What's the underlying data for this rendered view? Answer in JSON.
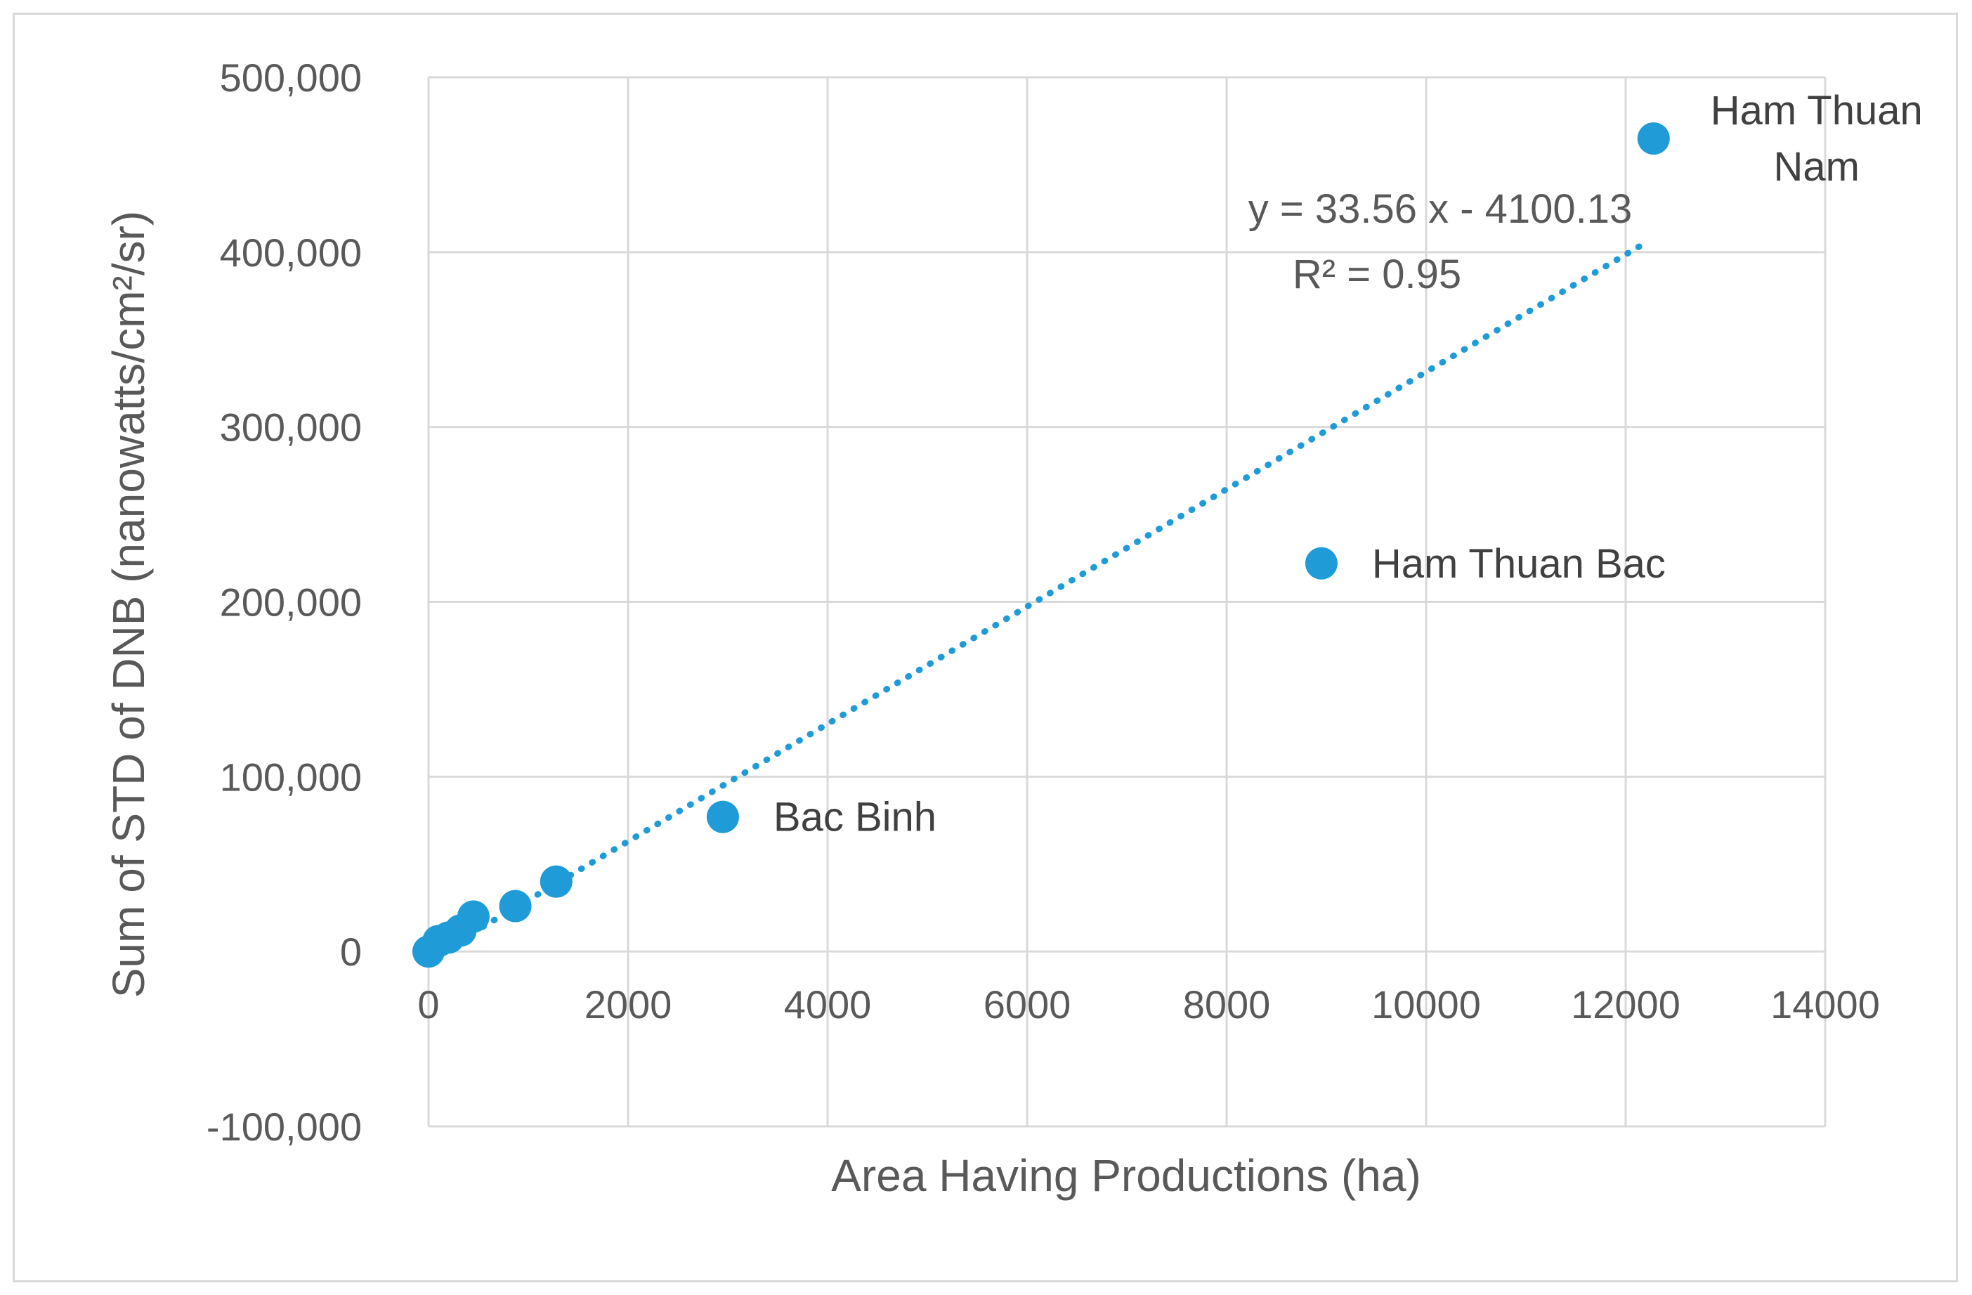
{
  "chart_data": {
    "type": "scatter",
    "xlabel": "Area Having Productions (ha)",
    "ylabel": "Sum of STD of DNB (nanowatts/cm²/sr)",
    "xlim": [
      0,
      14000
    ],
    "ylim": [
      -100000,
      500000
    ],
    "x_ticks": [
      0,
      2000,
      4000,
      6000,
      8000,
      10000,
      12000,
      14000
    ],
    "y_ticks": [
      -100000,
      0,
      100000,
      200000,
      300000,
      400000,
      500000
    ],
    "x_tick_labels": [
      "0",
      "2000",
      "4000",
      "6000",
      "8000",
      "10000",
      "12000",
      "14000"
    ],
    "y_tick_labels": [
      "-100,000",
      "0",
      "100,000",
      "200,000",
      "300,000",
      "400,000",
      "500,000"
    ],
    "grid": true,
    "point_color": "#1f9bd7",
    "points": [
      {
        "x": 0,
        "y": 0,
        "label": ""
      },
      {
        "x": 100,
        "y": 6000,
        "label": ""
      },
      {
        "x": 200,
        "y": 8000,
        "label": ""
      },
      {
        "x": 320,
        "y": 12000,
        "label": ""
      },
      {
        "x": 450,
        "y": 20000,
        "label": ""
      },
      {
        "x": 870,
        "y": 26000,
        "label": ""
      },
      {
        "x": 1280,
        "y": 40000,
        "label": ""
      },
      {
        "x": 2950,
        "y": 77000,
        "label": "Bac Binh"
      },
      {
        "x": 8950,
        "y": 222000,
        "label": "Ham Thuan Bac"
      },
      {
        "x": 12280,
        "y": 465000,
        "label": "Ham Thuan Nam"
      }
    ],
    "trendline": {
      "type": "linear",
      "slope": 33.56,
      "intercept": -4100.13,
      "x_range": [
        0,
        12150
      ],
      "style": "dotted",
      "equation_label": "y = 33.56 x - 4100.13",
      "r2_label": "R² = 0.95"
    }
  }
}
